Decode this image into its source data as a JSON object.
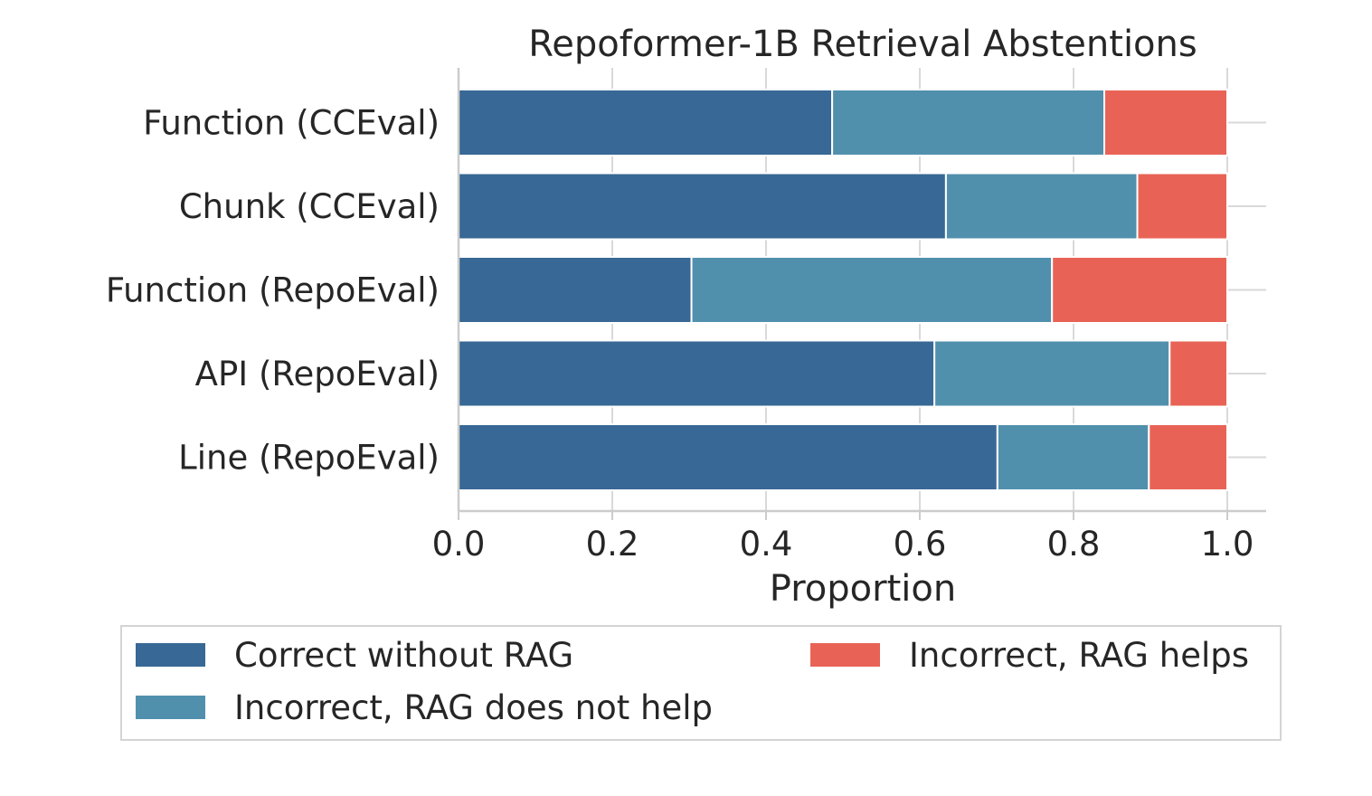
{
  "chart_data": {
    "type": "bar",
    "orientation": "horizontal",
    "stacked": true,
    "title": "Repoformer-1B Retrieval Abstentions",
    "xlabel": "Proportion",
    "ylabel": "",
    "xlim": [
      0,
      1.05
    ],
    "xticks": [
      "0.0",
      "0.2",
      "0.4",
      "0.6",
      "0.8",
      "1.0"
    ],
    "grid": true,
    "legend_position": "bottom",
    "categories": [
      "Function (CCEval)",
      "Chunk (CCEval)",
      "Function (RepoEval)",
      "API (RepoEval)",
      "Line (RepoEval)"
    ],
    "series": [
      {
        "name": "Correct without RAG",
        "color": "#386895",
        "values": [
          0.486,
          0.634,
          0.303,
          0.619,
          0.701
        ]
      },
      {
        "name": "Incorrect, RAG does not help",
        "color": "#5190ad",
        "values": [
          0.354,
          0.249,
          0.469,
          0.306,
          0.197
        ]
      },
      {
        "name": "Incorrect, RAG helps",
        "color": "#e86356",
        "values": [
          0.16,
          0.117,
          0.228,
          0.075,
          0.102
        ]
      }
    ]
  }
}
